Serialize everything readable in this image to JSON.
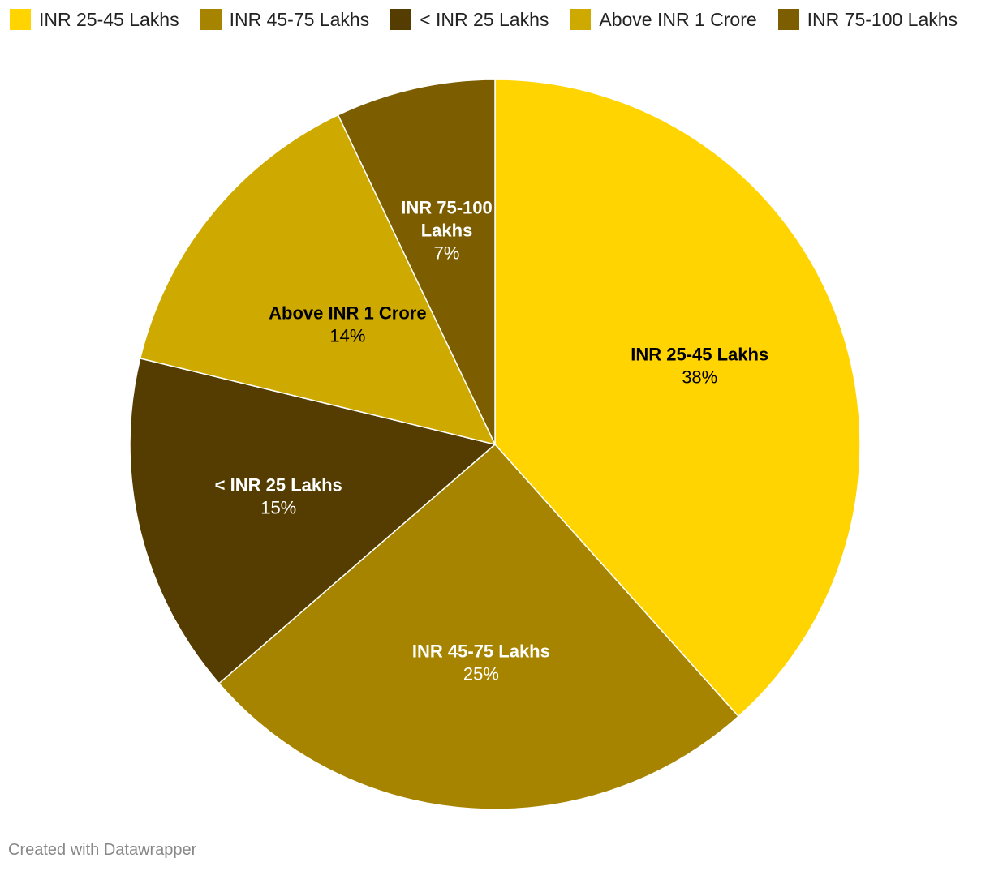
{
  "chart_data": {
    "type": "pie",
    "slices": [
      {
        "label": "INR 25-45 Lakhs",
        "label_lines": [
          "INR 25-45 Lakhs"
        ],
        "value": 38,
        "display": "38%",
        "color": "#ffd400",
        "text_color": "#000000"
      },
      {
        "label": "INR 45-75 Lakhs",
        "label_lines": [
          "INR 45-75 Lakhs"
        ],
        "value": 25,
        "display": "25%",
        "color": "#a68400",
        "text_color": "#ffffff"
      },
      {
        "label": "< INR 25 Lakhs",
        "label_lines": [
          "< INR 25 Lakhs"
        ],
        "value": 15,
        "display": "15%",
        "color": "#553c00",
        "text_color": "#ffffff"
      },
      {
        "label": "Above INR 1 Crore",
        "label_lines": [
          "Above INR 1 Crore"
        ],
        "value": 14,
        "display": "14%",
        "color": "#ceaa00",
        "text_color": "#000000"
      },
      {
        "label": "INR 75-100 Lakhs",
        "label_lines": [
          "INR 75-100",
          "Lakhs"
        ],
        "value": 7,
        "display": "7%",
        "color": "#7c5e00",
        "text_color": "#ffffff"
      }
    ],
    "legend_position": "top-left"
  },
  "legend": [
    {
      "label": "INR 25-45 Lakhs",
      "color": "#ffd400"
    },
    {
      "label": "INR 45-75 Lakhs",
      "color": "#a68400"
    },
    {
      "label": "< INR 25 Lakhs",
      "color": "#553c00"
    },
    {
      "label": "Above INR 1 Crore",
      "color": "#ceaa00"
    },
    {
      "label": "INR 75-100 Lakhs",
      "color": "#7c5e00"
    }
  ],
  "footer": {
    "credit": "Created with Datawrapper"
  }
}
